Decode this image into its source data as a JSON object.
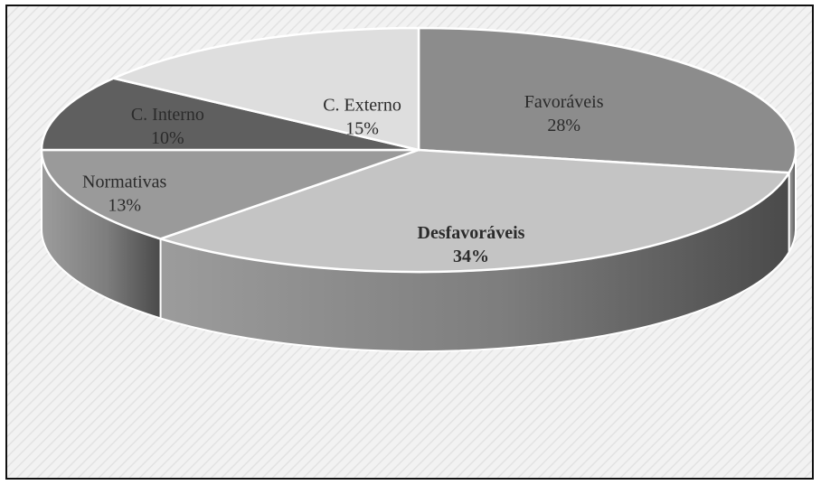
{
  "chart_data": {
    "type": "pie",
    "title": "",
    "slices": [
      {
        "label": "Favoráveis",
        "value": 28,
        "value_label": "28%",
        "color": "#8c8c8c",
        "bold": false
      },
      {
        "label": "Desfavoráveis",
        "value": 34,
        "value_label": "34%",
        "color": "#c4c4c4",
        "bold": true
      },
      {
        "label": "Normativas",
        "value": 13,
        "value_label": "13%",
        "color": "#9a9a9a",
        "bold": false
      },
      {
        "label": "C. Interno",
        "value": 10,
        "value_label": "10%",
        "color": "#5f5f5f",
        "bold": false
      },
      {
        "label": "C. Externo",
        "value": 15,
        "value_label": "15%",
        "color": "#dedede",
        "bold": false
      }
    ],
    "style": "3d-pie",
    "legend": "none",
    "background_color": "#f0f0f0",
    "border_color": "#111111"
  }
}
